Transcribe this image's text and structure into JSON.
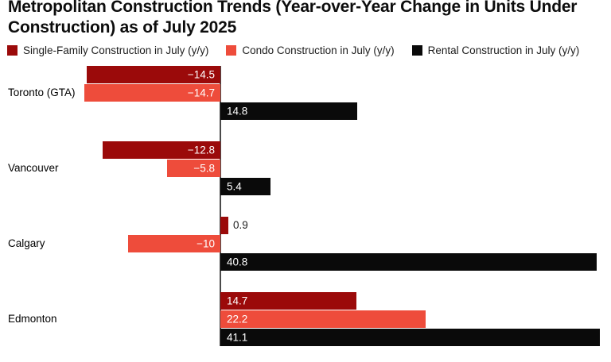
{
  "title": "Metropolitan Construction Trends (Year-over-Year Change in Units Under Construction) as of July 2025",
  "colors": {
    "axis_line": "#4a4a4a",
    "value_label_inside": "#ffffff",
    "value_label_outside": "#212121",
    "single_family": "#9b0a0a",
    "condo": "#ee4c3b",
    "rental": "#0a0a0a"
  },
  "chart_data": {
    "type": "bar",
    "orientation": "horizontal",
    "title": "Metropolitan Construction Trends (Year-over-Year Change in Units Under Construction) as of July 2025",
    "legend_position": "top",
    "grid": false,
    "xlim": [
      -14.7,
      41.1
    ],
    "categories": [
      "Toronto (GTA)",
      "Vancouver",
      "Calgary",
      "Edmonton"
    ],
    "series": [
      {
        "name": "Single-Family Construction in July (y/y)",
        "slug": "single-family",
        "color": "#9b0a0a",
        "values": [
          -14.5,
          -12.8,
          0.9,
          14.7
        ],
        "labels": [
          "−14.5",
          "−12.8",
          "0.9",
          "14.7"
        ]
      },
      {
        "name": "Condo Construction in July (y/y)",
        "slug": "condo",
        "color": "#ee4c3b",
        "values": [
          -14.7,
          -5.8,
          -10,
          22.2
        ],
        "labels": [
          "−14.7",
          "−5.8",
          "−10",
          "22.2"
        ]
      },
      {
        "name": "Rental Construction in July (y/y)",
        "slug": "rental",
        "color": "#0a0a0a",
        "values": [
          14.8,
          5.4,
          40.8,
          41.1
        ],
        "labels": [
          "14.8",
          "5.4",
          "40.8",
          "41.1"
        ]
      }
    ]
  }
}
